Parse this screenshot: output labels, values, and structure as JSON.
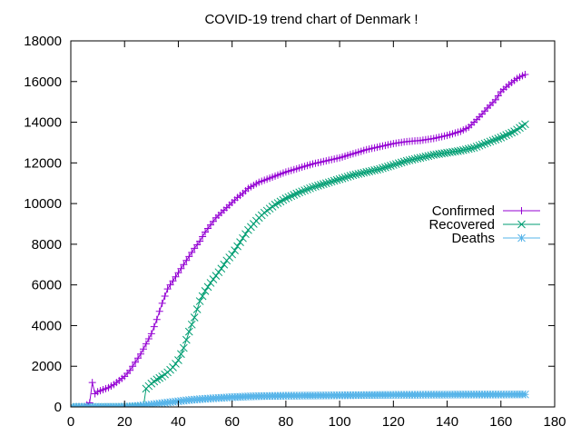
{
  "chart_data": {
    "type": "line",
    "title": "COVID-19 trend chart of Denmark !",
    "xlabel": "",
    "ylabel": "",
    "xlim": [
      0,
      180
    ],
    "ylim": [
      0,
      18000
    ],
    "x_ticks": [
      0,
      20,
      40,
      60,
      80,
      100,
      120,
      140,
      160,
      180
    ],
    "y_ticks": [
      0,
      2000,
      4000,
      6000,
      8000,
      10000,
      12000,
      14000,
      16000,
      18000
    ],
    "x_tick_labels": [
      "0",
      "20",
      "40",
      "60",
      "80",
      "100",
      "120",
      "140",
      "160",
      "180"
    ],
    "y_tick_labels": [
      "0",
      "2000",
      "4000",
      "6000",
      "8000",
      "10000",
      "12000",
      "14000",
      "16000",
      "18000"
    ],
    "grid": false,
    "legend_position": "right-middle",
    "series": [
      {
        "name": "Confirmed",
        "color": "#9400d3",
        "marker": "plus",
        "points": [
          [
            0,
            0
          ],
          [
            5,
            10
          ],
          [
            7,
            200
          ],
          [
            8,
            1200
          ],
          [
            9,
            650
          ],
          [
            10,
            750
          ],
          [
            12,
            850
          ],
          [
            14,
            950
          ],
          [
            16,
            1100
          ],
          [
            18,
            1300
          ],
          [
            20,
            1500
          ],
          [
            22,
            1800
          ],
          [
            24,
            2200
          ],
          [
            26,
            2600
          ],
          [
            28,
            3100
          ],
          [
            30,
            3600
          ],
          [
            32,
            4300
          ],
          [
            34,
            5100
          ],
          [
            36,
            5800
          ],
          [
            38,
            6200
          ],
          [
            40,
            6600
          ],
          [
            42,
            7000
          ],
          [
            44,
            7400
          ],
          [
            46,
            7800
          ],
          [
            48,
            8150
          ],
          [
            50,
            8600
          ],
          [
            52,
            8950
          ],
          [
            54,
            9300
          ],
          [
            56,
            9550
          ],
          [
            58,
            9800
          ],
          [
            60,
            10050
          ],
          [
            62,
            10300
          ],
          [
            64,
            10500
          ],
          [
            66,
            10750
          ],
          [
            68,
            10900
          ],
          [
            70,
            11050
          ],
          [
            72,
            11150
          ],
          [
            74,
            11250
          ],
          [
            76,
            11350
          ],
          [
            78,
            11450
          ],
          [
            80,
            11550
          ],
          [
            85,
            11750
          ],
          [
            90,
            11950
          ],
          [
            95,
            12100
          ],
          [
            100,
            12250
          ],
          [
            105,
            12450
          ],
          [
            110,
            12650
          ],
          [
            115,
            12800
          ],
          [
            120,
            12950
          ],
          [
            125,
            13050
          ],
          [
            130,
            13100
          ],
          [
            135,
            13200
          ],
          [
            140,
            13350
          ],
          [
            145,
            13550
          ],
          [
            148,
            13750
          ],
          [
            150,
            14000
          ],
          [
            153,
            14400
          ],
          [
            155,
            14700
          ],
          [
            158,
            15100
          ],
          [
            160,
            15500
          ],
          [
            163,
            15850
          ],
          [
            166,
            16150
          ],
          [
            169,
            16350
          ]
        ]
      },
      {
        "name": "Recovered",
        "color": "#009e73",
        "marker": "cross",
        "points": [
          [
            0,
            0
          ],
          [
            10,
            0
          ],
          [
            20,
            0
          ],
          [
            27,
            10
          ],
          [
            28,
            900
          ],
          [
            30,
            1150
          ],
          [
            32,
            1350
          ],
          [
            34,
            1500
          ],
          [
            36,
            1700
          ],
          [
            38,
            1950
          ],
          [
            40,
            2300
          ],
          [
            42,
            2900
          ],
          [
            44,
            3700
          ],
          [
            46,
            4400
          ],
          [
            48,
            5200
          ],
          [
            50,
            5700
          ],
          [
            52,
            6100
          ],
          [
            54,
            6450
          ],
          [
            56,
            6800
          ],
          [
            58,
            7200
          ],
          [
            60,
            7500
          ],
          [
            62,
            7900
          ],
          [
            64,
            8300
          ],
          [
            66,
            8700
          ],
          [
            68,
            9000
          ],
          [
            70,
            9300
          ],
          [
            72,
            9550
          ],
          [
            74,
            9750
          ],
          [
            76,
            9950
          ],
          [
            78,
            10100
          ],
          [
            80,
            10250
          ],
          [
            85,
            10550
          ],
          [
            90,
            10800
          ],
          [
            95,
            11000
          ],
          [
            100,
            11200
          ],
          [
            105,
            11400
          ],
          [
            110,
            11550
          ],
          [
            115,
            11700
          ],
          [
            120,
            11900
          ],
          [
            125,
            12100
          ],
          [
            130,
            12250
          ],
          [
            135,
            12400
          ],
          [
            140,
            12500
          ],
          [
            145,
            12600
          ],
          [
            150,
            12750
          ],
          [
            155,
            13000
          ],
          [
            160,
            13250
          ],
          [
            165,
            13550
          ],
          [
            169,
            13900
          ]
        ]
      },
      {
        "name": "Deaths",
        "color": "#56b4e9",
        "marker": "star",
        "points": [
          [
            0,
            0
          ],
          [
            10,
            0
          ],
          [
            20,
            10
          ],
          [
            25,
            50
          ],
          [
            30,
            120
          ],
          [
            35,
            200
          ],
          [
            40,
            280
          ],
          [
            45,
            350
          ],
          [
            50,
            400
          ],
          [
            55,
            440
          ],
          [
            60,
            480
          ],
          [
            65,
            510
          ],
          [
            70,
            530
          ],
          [
            80,
            550
          ],
          [
            90,
            560
          ],
          [
            100,
            570
          ],
          [
            110,
            585
          ],
          [
            120,
            595
          ],
          [
            130,
            600
          ],
          [
            140,
            605
          ],
          [
            150,
            610
          ],
          [
            160,
            610
          ],
          [
            169,
            615
          ]
        ]
      }
    ]
  }
}
